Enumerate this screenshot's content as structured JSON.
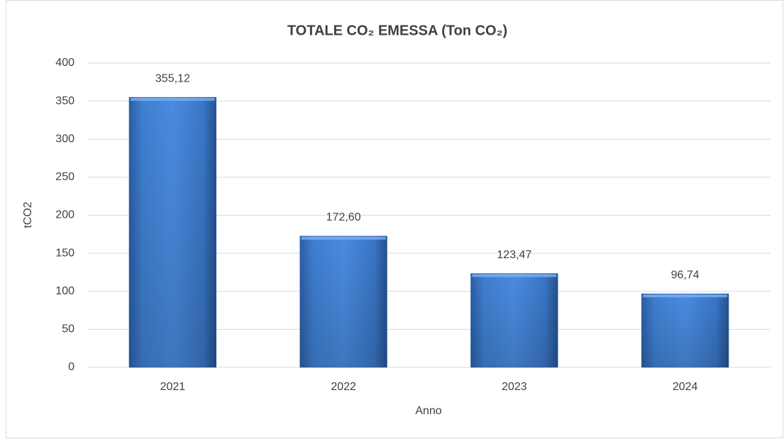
{
  "chart_data": {
    "type": "bar",
    "title": "TOTALE CO₂ EMESSA (Ton CO₂)",
    "x_label": "Anno",
    "y_label": "tCO2",
    "categories": [
      "2021",
      "2022",
      "2023",
      "2024"
    ],
    "values": [
      355.12,
      172.6,
      123.47,
      96.74
    ],
    "value_labels": [
      "355,12",
      "172,60",
      "123,47",
      "96,74"
    ],
    "color": "#3f7fd0",
    "ylim": [
      0,
      400
    ],
    "yticks": [
      0,
      50,
      100,
      150,
      200,
      250,
      300,
      350,
      400
    ],
    "grid": true
  }
}
